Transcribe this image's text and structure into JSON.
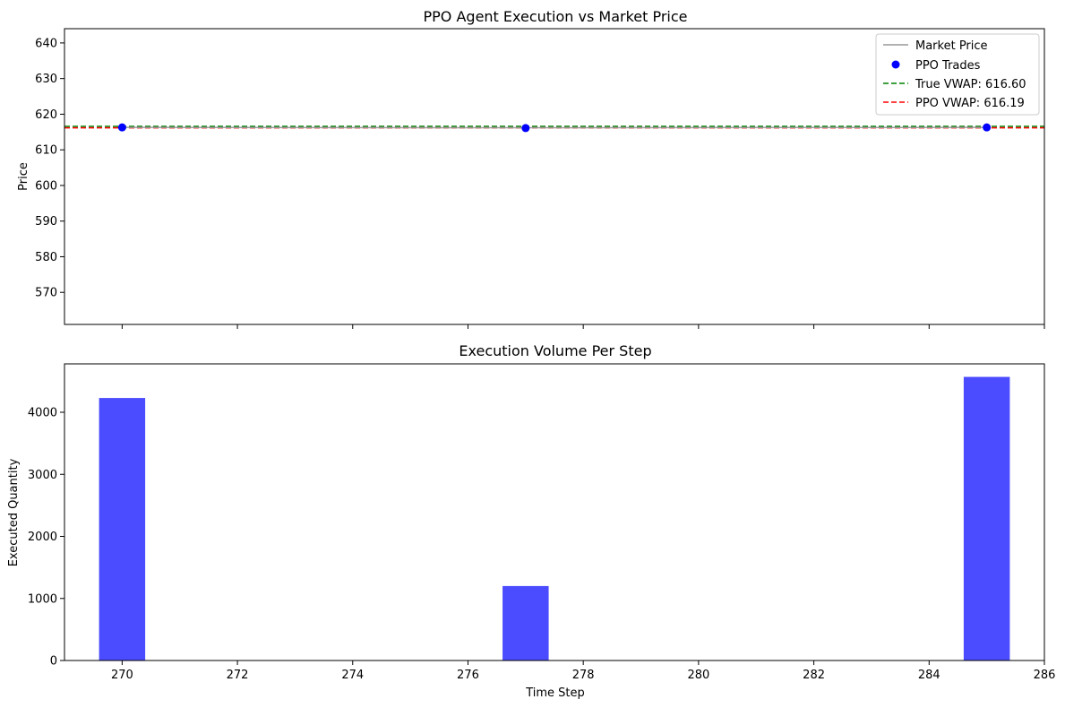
{
  "chart_data": [
    {
      "type": "scatter",
      "title": "PPO Agent Execution vs Market Price",
      "xlabel": "",
      "ylabel": "Price",
      "xlim": [
        269,
        286
      ],
      "ylim": [
        561,
        644
      ],
      "y_ticks": [
        570,
        580,
        590,
        600,
        610,
        620,
        630,
        640
      ],
      "x_tick_labels_shown": false,
      "grid": false,
      "legend_position": "upper right",
      "legend": [
        "Market Price",
        "PPO Trades",
        "True VWAP: 616.60",
        "PPO VWAP: 616.19"
      ],
      "series": [
        {
          "name": "Market Price",
          "kind": "line",
          "color": "#999999",
          "x": [
            270,
            277,
            285
          ],
          "y": [
            616.3,
            616.2,
            616.3
          ]
        },
        {
          "name": "PPO Trades",
          "kind": "scatter",
          "color": "#0000ff",
          "x": [
            270,
            277,
            285
          ],
          "y": [
            616.3,
            616.1,
            616.3
          ]
        },
        {
          "name": "True VWAP: 616.60",
          "kind": "hline",
          "style": "dashed",
          "color": "#008000",
          "y": 616.6
        },
        {
          "name": "PPO VWAP: 616.19",
          "kind": "hline",
          "style": "dashed",
          "color": "#ff0000",
          "y": 616.19
        }
      ]
    },
    {
      "type": "bar",
      "title": "Execution Volume Per Step",
      "xlabel": "Time Step",
      "ylabel": "Executed Quantity",
      "xlim": [
        269,
        286
      ],
      "ylim": [
        0,
        4780
      ],
      "x_ticks": [
        270,
        272,
        274,
        276,
        278,
        280,
        282,
        284,
        286
      ],
      "y_ticks": [
        0,
        1000,
        2000,
        3000,
        4000
      ],
      "bar_width": 0.8,
      "bar_color": "#4b4bff",
      "x": [
        270,
        277,
        285
      ],
      "values": [
        4230,
        1200,
        4570
      ]
    }
  ]
}
